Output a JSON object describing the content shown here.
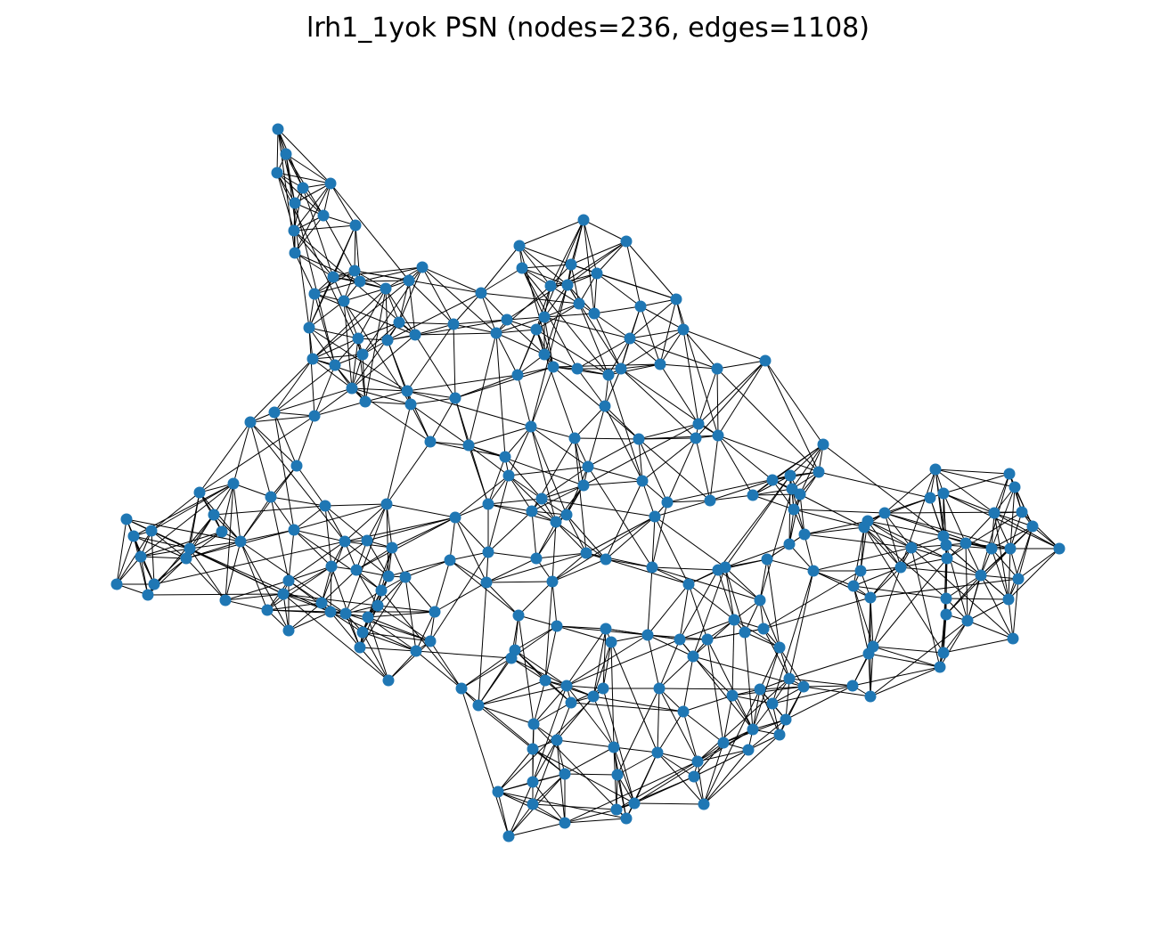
{
  "figure": {
    "title": "lrh1_1yok PSN (nodes=236, edges=1108)"
  },
  "style": {
    "node_color": "#1f77b4",
    "edge_color": "#000000",
    "background": "#ffffff"
  }
}
